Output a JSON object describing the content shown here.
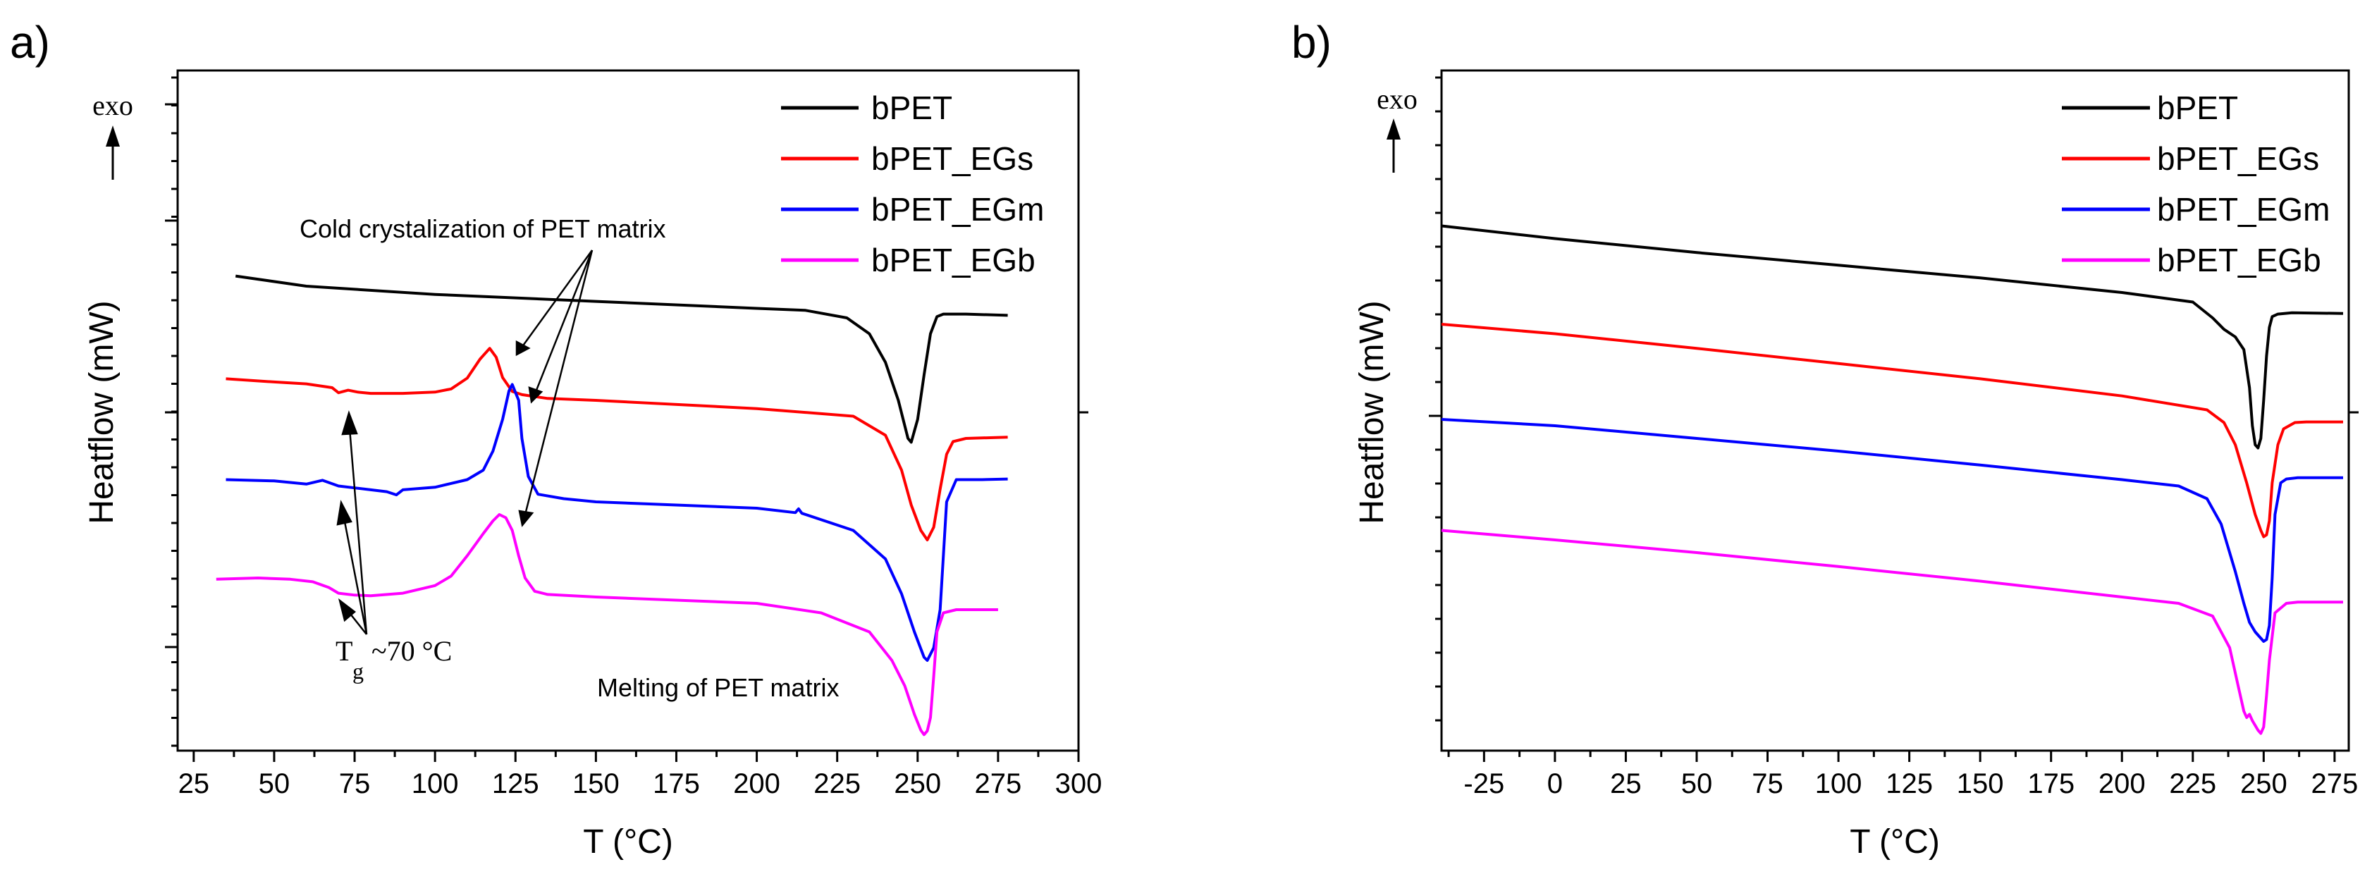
{
  "colors": {
    "bPET": "#000000",
    "bPET_EGs": "#ff0000",
    "bPET_EGm": "#0000ff",
    "bPET_EGb": "#ff00ff",
    "axis": "#000000"
  },
  "chart_data": [
    {
      "panel_label": "a)",
      "type": "line",
      "xlabel": "T (°C)",
      "ylabel": "Heatflow (mW)",
      "exo_label": "exo",
      "xlim": [
        20,
        300
      ],
      "ylim": [
        0,
        100
      ],
      "xticks": [
        "25",
        "50",
        "75",
        "100",
        "125",
        "150",
        "175",
        "200",
        "225",
        "250",
        "275",
        "300"
      ],
      "legend_position": "top-right",
      "series": [
        {
          "name": "bPET",
          "color": "#000000",
          "x": [
            38,
            60,
            100,
            150,
            200,
            215,
            228,
            235,
            240,
            244,
            247,
            248,
            250,
            252,
            254,
            256,
            258,
            265,
            278
          ],
          "y": [
            72.6,
            71.0,
            69.7,
            68.6,
            67.5,
            67.2,
            66.0,
            63.5,
            59.0,
            53.0,
            47.0,
            46.4,
            50.0,
            57.0,
            63.5,
            66.2,
            66.6,
            66.6,
            66.4
          ]
        },
        {
          "name": "bPET_EGs",
          "color": "#ff0000",
          "x": [
            35,
            50,
            60,
            68,
            70,
            73,
            76,
            80,
            90,
            100,
            105,
            110,
            114,
            117,
            119,
            121,
            124,
            127,
            135,
            150,
            200,
            230,
            240,
            245,
            248,
            251,
            253,
            255,
            257,
            259,
            261,
            265,
            278
          ],
          "y": [
            56.4,
            55.9,
            55.6,
            55.0,
            54.2,
            54.6,
            54.3,
            54.1,
            54.1,
            54.3,
            54.8,
            56.5,
            59.5,
            61.2,
            59.8,
            56.6,
            54.4,
            53.9,
            53.3,
            53.0,
            51.7,
            50.5,
            47.5,
            42.0,
            36.5,
            32.5,
            31.0,
            33.0,
            39.0,
            44.5,
            46.5,
            47.0,
            47.2
          ]
        },
        {
          "name": "bPET_EGm",
          "color": "#0000ff",
          "x": [
            35,
            50,
            60,
            65,
            70,
            75,
            80,
            85,
            88,
            90,
            100,
            110,
            115,
            118,
            121,
            123,
            124,
            126,
            127,
            129,
            132,
            140,
            150,
            200,
            212,
            213,
            214,
            230,
            240,
            245,
            249,
            252,
            253,
            255,
            257,
            259,
            262,
            270,
            278
          ],
          "y": [
            40.5,
            40.3,
            39.8,
            40.4,
            39.5,
            39.2,
            38.9,
            38.6,
            38.1,
            38.9,
            39.3,
            40.5,
            42.0,
            45.0,
            50.0,
            54.5,
            55.5,
            53.0,
            47.0,
            41.0,
            38.2,
            37.5,
            37.0,
            36.0,
            35.3,
            35.9,
            35.2,
            32.5,
            28.0,
            22.5,
            16.5,
            12.5,
            12.0,
            14.0,
            20.0,
            37.0,
            40.5,
            40.5,
            40.6
          ]
        },
        {
          "name": "bPET_EGb",
          "color": "#ff00ff",
          "x": [
            32,
            45,
            55,
            62,
            67,
            70,
            75,
            80,
            90,
            100,
            105,
            110,
            115,
            118,
            120,
            122,
            124,
            126,
            128,
            131,
            135,
            150,
            200,
            220,
            235,
            242,
            246,
            249,
            251,
            252,
            253,
            254,
            255,
            256,
            258,
            262,
            275
          ],
          "y": [
            24.8,
            25.0,
            24.8,
            24.4,
            23.5,
            22.6,
            22.3,
            22.2,
            22.6,
            23.8,
            25.3,
            28.5,
            32.0,
            34.0,
            35.0,
            34.5,
            32.5,
            28.5,
            25.0,
            22.9,
            22.4,
            22.0,
            21.0,
            19.5,
            16.5,
            12.0,
            8.0,
            3.5,
            1.0,
            0.3,
            0.9,
            3.0,
            9.5,
            16.5,
            19.5,
            20.0,
            20.0
          ]
        }
      ],
      "annotations": [
        {
          "text": "Cold crystalization of PET matrix"
        },
        {
          "text": "Melting of PET matrix"
        },
        {
          "text": "T",
          "subscript": "g",
          "suffix": "~70 °C"
        }
      ]
    },
    {
      "panel_label": "b)",
      "type": "line",
      "xlabel": "T (°C)",
      "ylabel": "Heatflow (mW)",
      "exo_label": "exo",
      "xlim": [
        -40,
        280
      ],
      "ylim": [
        0,
        100
      ],
      "xticks": [
        "-25",
        "0",
        "25",
        "50",
        "75",
        "100",
        "125",
        "150",
        "175",
        "200",
        "225",
        "250",
        "275"
      ],
      "legend_position": "top-right",
      "series": [
        {
          "name": "bPET",
          "color": "#000000",
          "x": [
            -40,
            0,
            50,
            100,
            150,
            200,
            225,
            232,
            236,
            240,
            243,
            245,
            246,
            247,
            248,
            249,
            250,
            251,
            252,
            253,
            255,
            260,
            278
          ],
          "y": [
            80.5,
            78.5,
            76.3,
            74.3,
            72.3,
            70.0,
            68.5,
            66.0,
            64.2,
            63.0,
            61.0,
            55.0,
            49.0,
            46.0,
            45.5,
            47.0,
            53.0,
            60.0,
            64.5,
            66.2,
            66.6,
            66.8,
            66.7
          ]
        },
        {
          "name": "bPET_EGs",
          "color": "#ff0000",
          "x": [
            -40,
            0,
            50,
            100,
            150,
            200,
            230,
            236,
            240,
            244,
            247,
            249,
            250,
            251,
            252,
            253,
            255,
            257,
            259,
            261,
            265,
            278
          ],
          "y": [
            65.0,
            63.5,
            61.2,
            58.8,
            56.4,
            53.7,
            51.5,
            49.5,
            46.0,
            40.0,
            35.0,
            32.5,
            31.5,
            31.8,
            34.0,
            40.0,
            46.0,
            48.5,
            49.0,
            49.5,
            49.6,
            49.6
          ]
        },
        {
          "name": "bPET_EGm",
          "color": "#0000ff",
          "x": [
            -40,
            0,
            50,
            100,
            150,
            200,
            220,
            230,
            235,
            240,
            243,
            245,
            247,
            249,
            250,
            251,
            252,
            253,
            254,
            256,
            258,
            262,
            278
          ],
          "y": [
            50.0,
            49.0,
            47.0,
            45.0,
            42.8,
            40.5,
            39.5,
            37.5,
            33.5,
            26.0,
            21.0,
            18.0,
            16.5,
            15.5,
            15.0,
            15.3,
            17.5,
            25.0,
            35.0,
            40.0,
            40.6,
            40.8,
            40.8
          ]
        },
        {
          "name": "bPET_EGb",
          "color": "#ff00ff",
          "x": [
            -40,
            0,
            50,
            100,
            150,
            200,
            220,
            232,
            238,
            241,
            243,
            244,
            245,
            246,
            248,
            249,
            250,
            251,
            252,
            254,
            258,
            262,
            278
          ],
          "y": [
            32.5,
            31.0,
            29.0,
            26.8,
            24.5,
            22.0,
            21.0,
            19.0,
            14.0,
            8.0,
            4.0,
            3.0,
            3.5,
            2.5,
            1.0,
            0.5,
            1.5,
            6.5,
            12.0,
            19.5,
            21.0,
            21.2,
            21.2
          ]
        }
      ]
    }
  ]
}
